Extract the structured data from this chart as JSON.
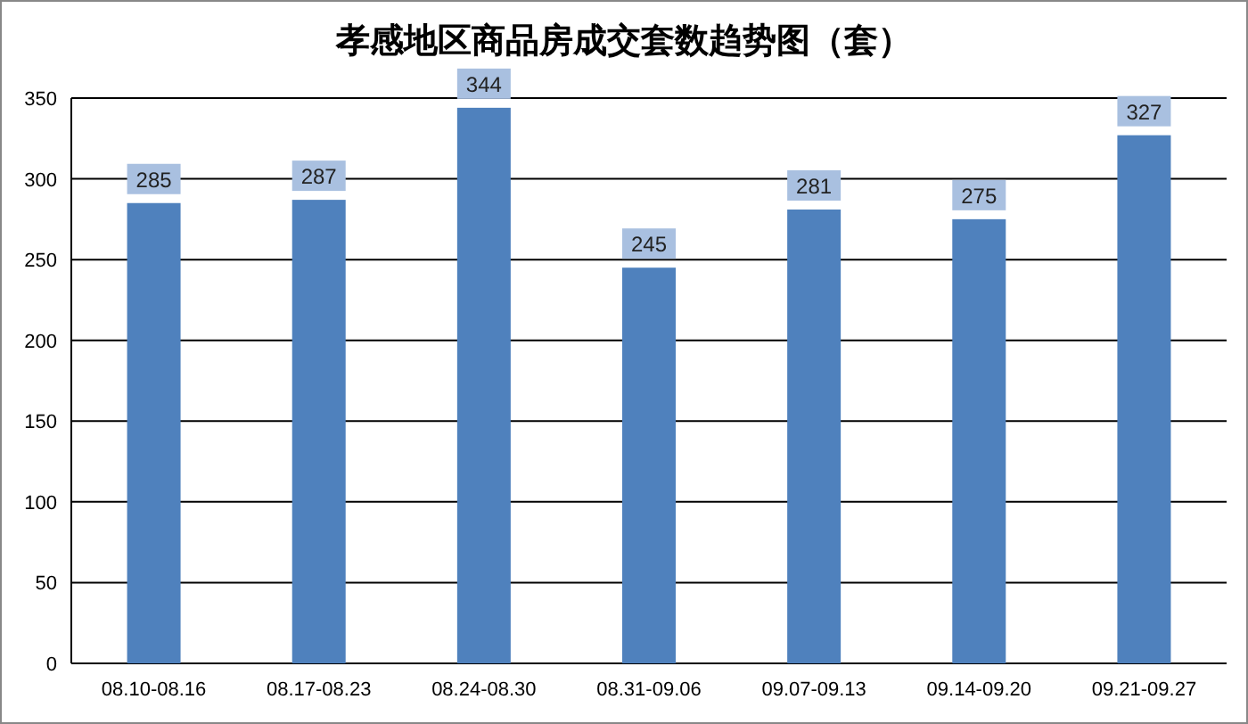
{
  "chart_data": {
    "type": "bar",
    "title": "孝感地区商品房成交套数趋势图（套）",
    "categories": [
      "08.10-08.16",
      "08.17-08.23",
      "08.24-08.30",
      "08.31-09.06",
      "09.07-09.13",
      "09.14-09.20",
      "09.21-09.27"
    ],
    "values": [
      285,
      287,
      344,
      245,
      281,
      275,
      327
    ],
    "color": "#4f81bd",
    "ylim": [
      0,
      350
    ],
    "yticks": [
      0,
      50,
      100,
      150,
      200,
      250,
      300,
      350
    ],
    "grid": "y",
    "data_labels": true
  }
}
